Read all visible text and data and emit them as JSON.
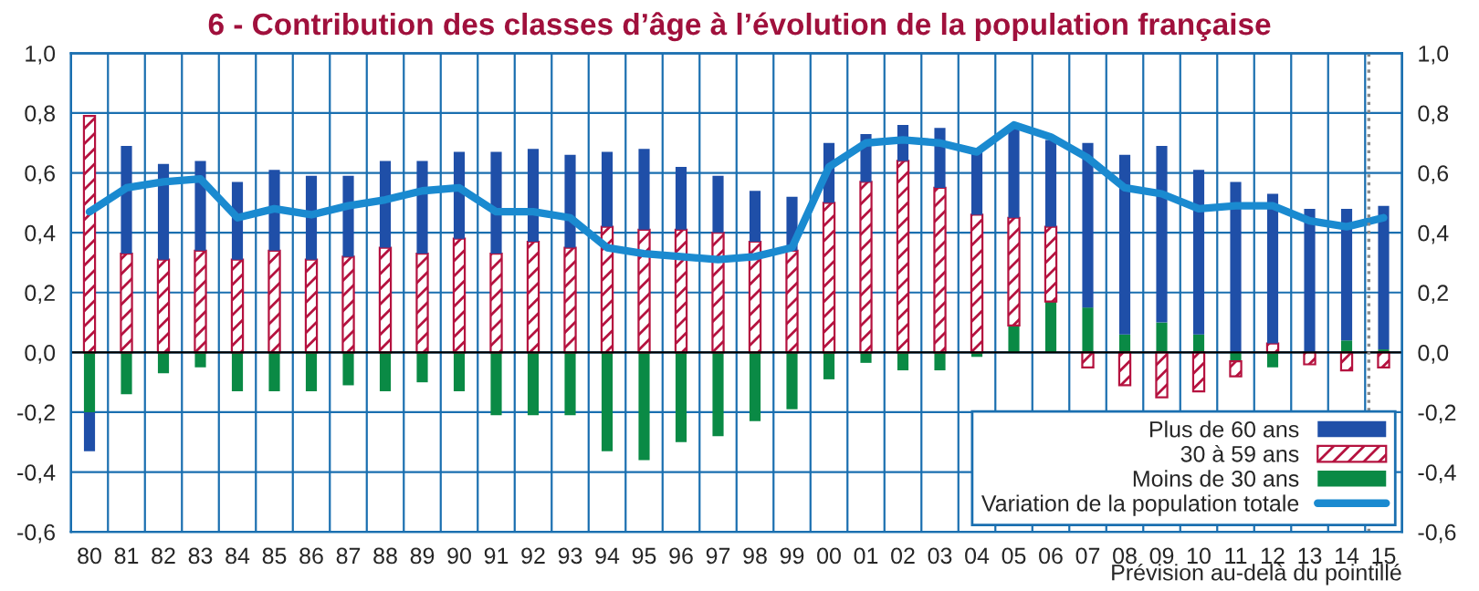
{
  "chart_data": {
    "type": "bar",
    "title": "6 - Contribution des classes d’âge à l’évolution de la population française",
    "categories": [
      "80",
      "81",
      "82",
      "83",
      "84",
      "85",
      "86",
      "87",
      "88",
      "89",
      "90",
      "91",
      "92",
      "93",
      "94",
      "95",
      "96",
      "97",
      "98",
      "99",
      "00",
      "01",
      "02",
      "03",
      "04",
      "05",
      "06",
      "07",
      "08",
      "09",
      "10",
      "11",
      "12",
      "13",
      "14",
      "15"
    ],
    "stacked": true,
    "series": [
      {
        "name": "Moins de 30 ans",
        "color": "#0a8a45",
        "values": [
          -0.2,
          -0.14,
          -0.07,
          -0.05,
          -0.13,
          -0.13,
          -0.13,
          -0.11,
          -0.13,
          -0.1,
          -0.13,
          -0.21,
          -0.21,
          -0.21,
          -0.33,
          -0.36,
          -0.3,
          -0.28,
          -0.23,
          -0.19,
          -0.09,
          -0.035,
          -0.06,
          -0.06,
          -0.015,
          0.09,
          0.17,
          0.15,
          0.06,
          0.1,
          0.06,
          -0.03,
          -0.05,
          0,
          0.04,
          0.01
        ]
      },
      {
        "name": "30 à 59 ans",
        "color": "#b5123f",
        "values": [
          0.79,
          0.33,
          0.31,
          0.34,
          0.31,
          0.34,
          0.31,
          0.32,
          0.35,
          0.33,
          0.38,
          0.33,
          0.37,
          0.35,
          0.42,
          0.41,
          0.41,
          0.4,
          0.37,
          0.34,
          0.5,
          0.57,
          0.64,
          0.55,
          0.46,
          0.36,
          0.25,
          -0.05,
          -0.11,
          -0.15,
          -0.13,
          -0.05,
          0.03,
          -0.04,
          -0.06,
          -0.05
        ]
      },
      {
        "name": "Plus de 60 ans",
        "color": "#1f4fa8",
        "values": [
          -0.13,
          0.36,
          0.32,
          0.3,
          0.26,
          0.27,
          0.28,
          0.27,
          0.29,
          0.31,
          0.29,
          0.34,
          0.31,
          0.31,
          0.25,
          0.27,
          0.21,
          0.19,
          0.17,
          0.18,
          0.2,
          0.16,
          0.12,
          0.2,
          0.22,
          0.31,
          0.29,
          0.55,
          0.6,
          0.59,
          0.55,
          0.57,
          0.5,
          0.48,
          0.44,
          0.48
        ]
      },
      {
        "name": "Variation de la population totale",
        "type": "line",
        "color": "#1a8ad0",
        "values": [
          0.47,
          0.55,
          0.57,
          0.58,
          0.45,
          0.48,
          0.46,
          0.49,
          0.51,
          0.54,
          0.55,
          0.47,
          0.47,
          0.45,
          0.35,
          0.33,
          0.32,
          0.31,
          0.32,
          0.35,
          0.62,
          0.7,
          0.71,
          0.7,
          0.67,
          0.76,
          0.72,
          0.65,
          0.55,
          0.53,
          0.48,
          0.49,
          0.49,
          0.44,
          0.42,
          0.45
        ]
      }
    ],
    "ylim": [
      -0.6,
      1.0
    ],
    "yticks": [
      {
        "value": -0.6,
        "label": "-0,6"
      },
      {
        "value": -0.4,
        "label": "-0,4"
      },
      {
        "value": -0.2,
        "label": "-0,2"
      },
      {
        "value": 0,
        "label": "0,0"
      },
      {
        "value": 0.2,
        "label": "0,2"
      },
      {
        "value": 0.4,
        "label": "0,4"
      },
      {
        "value": 0.6,
        "label": "0,6"
      },
      {
        "value": 0.8,
        "label": "0,8"
      },
      {
        "value": 1.0,
        "label": "1,0"
      }
    ],
    "y2lim": [
      -0.6,
      1.0
    ],
    "y2ticks": [
      {
        "value": -0.6,
        "label": "-0,6"
      },
      {
        "value": -0.4,
        "label": "-0,4"
      },
      {
        "value": -0.2,
        "label": "-0,2"
      },
      {
        "value": 0,
        "label": "0,0"
      },
      {
        "value": 0.2,
        "label": "0,2"
      },
      {
        "value": 0.4,
        "label": "0,4"
      },
      {
        "value": 0.6,
        "label": "0,6"
      },
      {
        "value": 0.8,
        "label": "0,8"
      },
      {
        "value": 1.0,
        "label": "1,0"
      }
    ],
    "ref_lines": [
      {
        "axis": "x",
        "value": "15",
        "line_style": "dotted",
        "color": "#888888"
      }
    ],
    "annotations": [
      "Prévision au-delà du pointillé"
    ],
    "grid": true,
    "legend": "bottom right"
  }
}
